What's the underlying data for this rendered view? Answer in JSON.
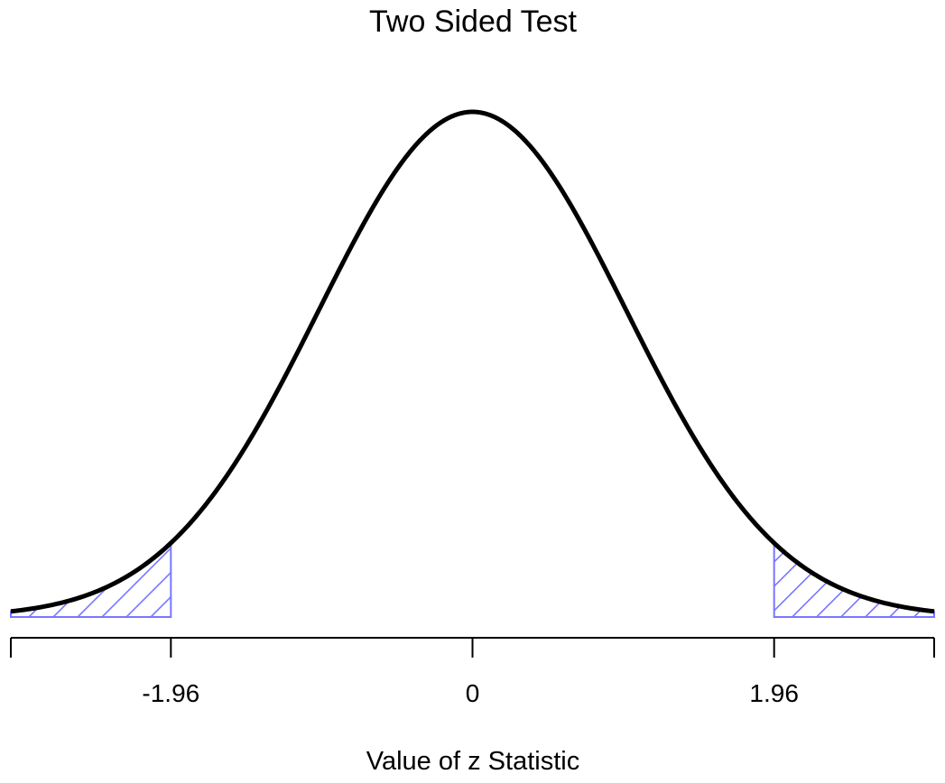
{
  "chart_data": {
    "type": "area",
    "title": "Two Sided Test",
    "xlabel": "Value of z Statistic",
    "ylabel": "",
    "xlim": [
      -3,
      3
    ],
    "ticks": [
      {
        "value": -3,
        "label": ""
      },
      {
        "value": -1.96,
        "label": "-1.96"
      },
      {
        "value": 0,
        "label": "0"
      },
      {
        "value": 1.96,
        "label": "1.96"
      },
      {
        "value": 3,
        "label": ""
      }
    ],
    "series": [
      {
        "type": "line",
        "distribution": "standard normal density",
        "x_range": [
          -3,
          3
        ],
        "color": "#000000"
      }
    ],
    "shaded_regions": [
      {
        "from": -3,
        "to": -1.96,
        "fill": "hatched",
        "color": "#7777ff"
      },
      {
        "from": 1.96,
        "to": 3,
        "fill": "hatched",
        "color": "#7777ff"
      }
    ],
    "grid": false,
    "legend": "none"
  }
}
